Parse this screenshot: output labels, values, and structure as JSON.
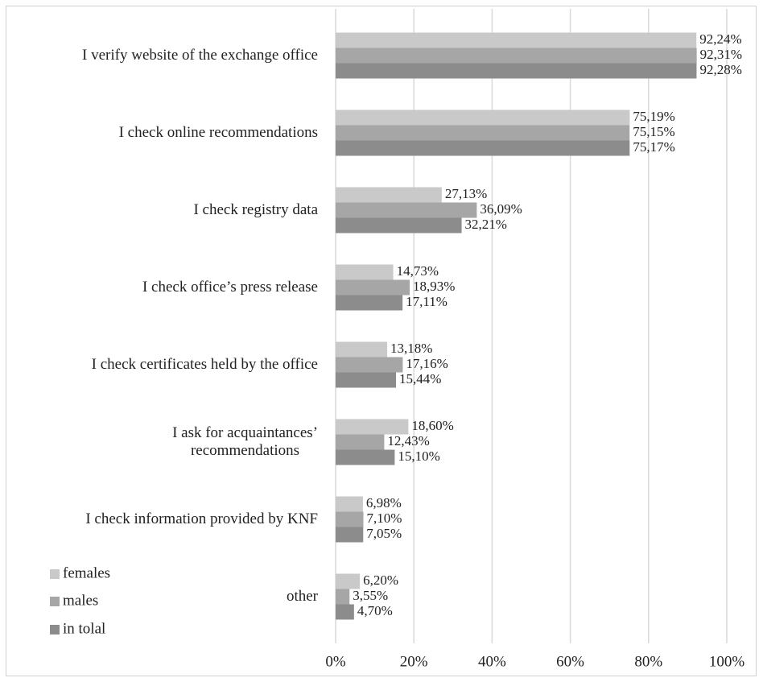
{
  "chart_data": {
    "type": "bar",
    "orientation": "horizontal",
    "categories": [
      "I verify website of the exchange office",
      "I check online recommendations",
      "I check registry data",
      "I check office’s press release",
      "I check certificates held by the office",
      "I ask for acquaintances’\nrecommendations",
      "I check information provided by KNF",
      "other"
    ],
    "series": [
      {
        "name": "females",
        "color": "#c9c9c9",
        "values": [
          92.24,
          75.19,
          27.13,
          14.73,
          13.18,
          18.6,
          6.98,
          6.2
        ],
        "value_labels": [
          "92,24%",
          "75,19%",
          "27,13%",
          "14,73%",
          "13,18%",
          "18,60%",
          "6,98%",
          "6,20%"
        ]
      },
      {
        "name": "males",
        "color": "#a6a6a6",
        "values": [
          92.31,
          75.15,
          36.09,
          18.93,
          17.16,
          12.43,
          7.1,
          3.55
        ],
        "value_labels": [
          "92,31%",
          "75,15%",
          "36,09%",
          "18,93%",
          "17,16%",
          "12,43%",
          "7,10%",
          "3,55%"
        ]
      },
      {
        "name": "in tolal",
        "color": "#8c8c8c",
        "values": [
          92.28,
          75.17,
          32.21,
          17.11,
          15.44,
          15.1,
          7.05,
          4.7
        ],
        "value_labels": [
          "92,28%",
          "75,17%",
          "32,21%",
          "17,11%",
          "15,44%",
          "15,10%",
          "7,05%",
          "4,70%"
        ]
      }
    ],
    "xlim": [
      0,
      100
    ],
    "xticks": [
      {
        "value": 0,
        "label": "0%"
      },
      {
        "value": 20,
        "label": "20%"
      },
      {
        "value": 40,
        "label": "40%"
      },
      {
        "value": 60,
        "label": "60%"
      },
      {
        "value": 80,
        "label": "80%"
      },
      {
        "value": 100,
        "label": "100%"
      }
    ],
    "grid": true,
    "legend": "lower left"
  }
}
